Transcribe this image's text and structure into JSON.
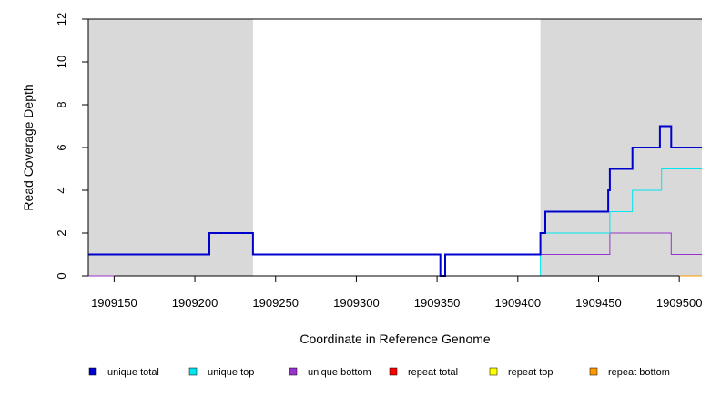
{
  "chart_data": {
    "type": "line",
    "xlabel": "Coordinate in Reference Genome",
    "ylabel": "Read Coverage Depth",
    "xlim": [
      1909134,
      1909514
    ],
    "ylim": [
      0,
      12
    ],
    "x_ticks": [
      1909150,
      1909200,
      1909250,
      1909300,
      1909350,
      1909400,
      1909450,
      1909500
    ],
    "x_tick_labels": [
      "1909150",
      "1909200",
      "1909250",
      "1909300",
      "1909350",
      "1909400",
      "1909450",
      "1909500"
    ],
    "y_ticks": [
      0,
      2,
      4,
      6,
      8,
      10,
      12
    ],
    "y_tick_labels": [
      "0",
      "2",
      "4",
      "6",
      "8",
      "10",
      "12"
    ],
    "grid": false,
    "legend_position": "bottom",
    "shaded_regions": [
      {
        "x_start": 1909134,
        "x_end": 1909236,
        "color": "#d9d9d9"
      },
      {
        "x_start": 1909414,
        "x_end": 1909514,
        "color": "#d9d9d9"
      }
    ],
    "series": [
      {
        "name": "unique total",
        "color": "#0000cd",
        "steps": [
          [
            1909134,
            1
          ],
          [
            1909209,
            2
          ],
          [
            1909236,
            1
          ],
          [
            1909352,
            0
          ],
          [
            1909355,
            1
          ],
          [
            1909414,
            2
          ],
          [
            1909417,
            3
          ],
          [
            1909456,
            4
          ],
          [
            1909457,
            5
          ],
          [
            1909471,
            6
          ],
          [
            1909488,
            7
          ],
          [
            1909495,
            6
          ],
          [
            1909514,
            6
          ]
        ]
      },
      {
        "name": "unique top",
        "color": "#00e5ee",
        "steps": [
          [
            1909134,
            1
          ],
          [
            1909209,
            2
          ],
          [
            1909236,
            1
          ],
          [
            1909352,
            0
          ],
          [
            1909414,
            2
          ],
          [
            1909457,
            3
          ],
          [
            1909471,
            4
          ],
          [
            1909489,
            5
          ],
          [
            1909514,
            5
          ]
        ]
      },
      {
        "name": "unique bottom",
        "color": "#9932cc",
        "steps": [
          [
            1909134,
            0
          ],
          [
            1909355,
            1
          ],
          [
            1909457,
            2
          ],
          [
            1909495,
            1
          ],
          [
            1909514,
            1
          ]
        ]
      },
      {
        "name": "repeat total",
        "color": "#ff0000",
        "steps": [
          [
            1909134,
            0
          ],
          [
            1909514,
            0
          ]
        ]
      },
      {
        "name": "repeat top",
        "color": "#ffff00",
        "steps": [
          [
            1909134,
            0
          ],
          [
            1909514,
            0
          ]
        ]
      },
      {
        "name": "repeat bottom",
        "color": "#ff9900",
        "steps": [
          [
            1909134,
            0
          ],
          [
            1909514,
            0
          ]
        ]
      }
    ]
  }
}
